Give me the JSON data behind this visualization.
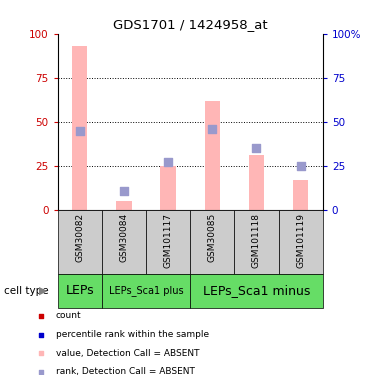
{
  "title": "GDS1701 / 1424958_at",
  "samples": [
    "GSM30082",
    "GSM30084",
    "GSM101117",
    "GSM30085",
    "GSM101118",
    "GSM101119"
  ],
  "bar_values": [
    93,
    5,
    25,
    62,
    31,
    17
  ],
  "rank_values": [
    45,
    11,
    27,
    46,
    35,
    25
  ],
  "bar_color": "#FFB6B6",
  "rank_color": "#9999CC",
  "count_color": "#CC0000",
  "pct_color": "#0000CC",
  "ylim": [
    0,
    100
  ],
  "yticks": [
    0,
    25,
    50,
    75,
    100
  ],
  "cell_groups": [
    {
      "label": "LEPs",
      "start": 0,
      "end": 1,
      "fontsize": 9
    },
    {
      "label": "LEPs_Sca1 plus",
      "start": 1,
      "end": 3,
      "fontsize": 7
    },
    {
      "label": "LEPs_Sca1 minus",
      "start": 3,
      "end": 6,
      "fontsize": 9
    }
  ],
  "cell_group_color": "#66DD66",
  "sample_bg_color": "#CCCCCC",
  "legend_items": [
    {
      "label": "count",
      "color": "#CC0000"
    },
    {
      "label": "percentile rank within the sample",
      "color": "#0000CC"
    },
    {
      "label": "value, Detection Call = ABSENT",
      "color": "#FFB6B6"
    },
    {
      "label": "rank, Detection Call = ABSENT",
      "color": "#9999CC"
    }
  ],
  "cell_type_label": "cell type"
}
